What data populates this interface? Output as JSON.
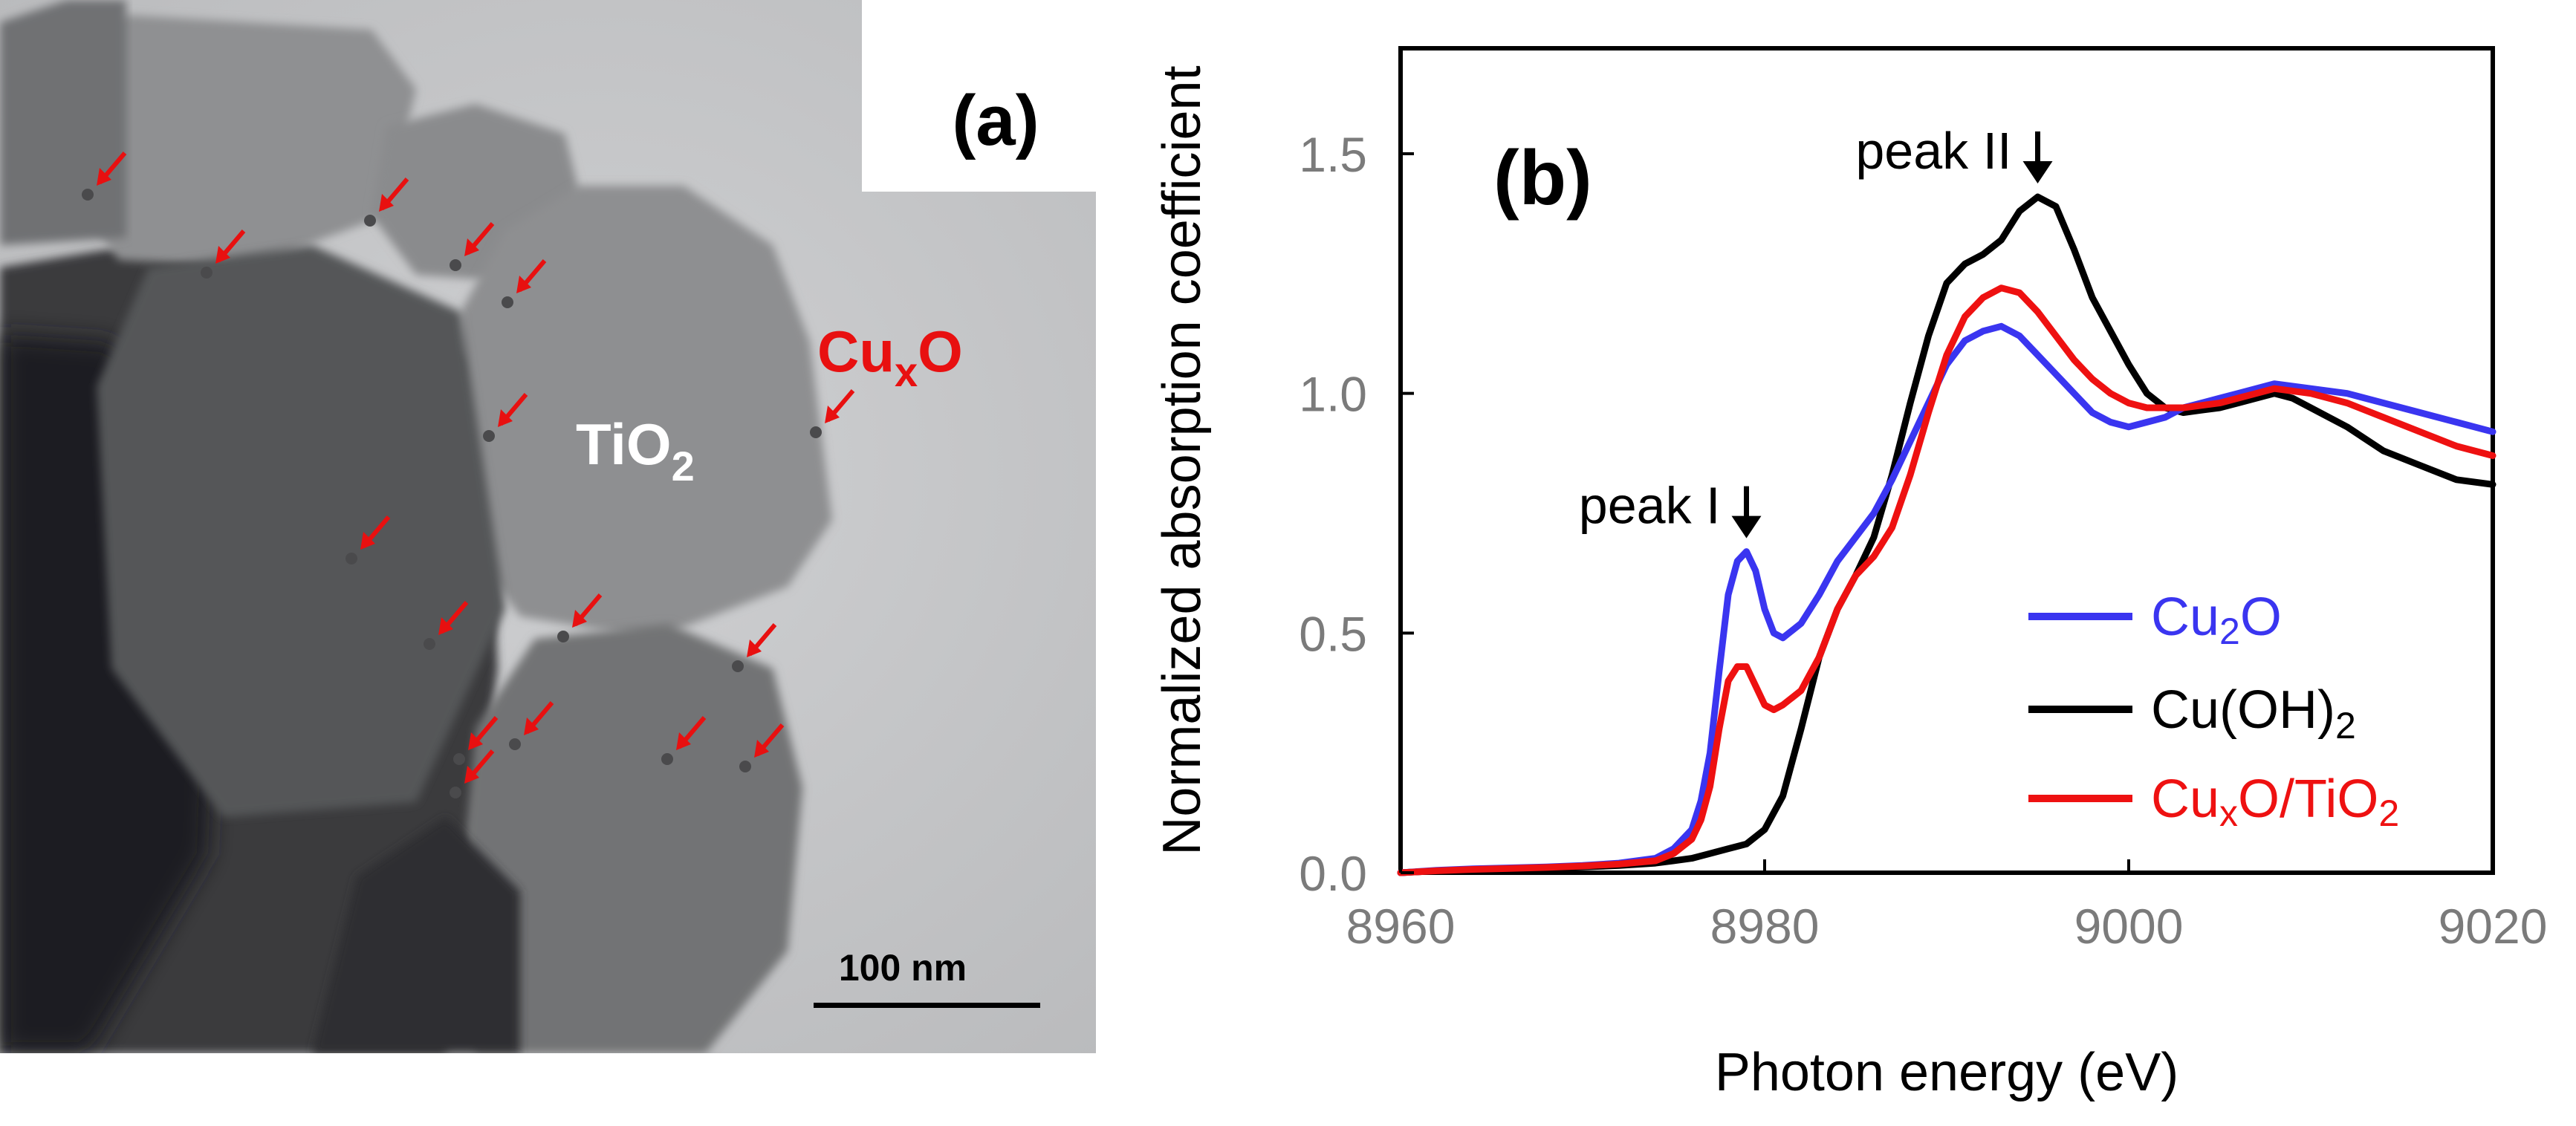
{
  "panel_a": {
    "label": "(a)",
    "tio2_label": {
      "base": "TiO",
      "sub": "2"
    },
    "cuxo_label": {
      "base": "Cu",
      "sub": "x",
      "tail": "O"
    },
    "scale_bar": "100 nm",
    "colors": {
      "marker": "#e81010",
      "label_red": "#e81010",
      "label_white": "#ffffff"
    }
  },
  "chart_data": {
    "type": "line",
    "panel_label": "(b)",
    "xlabel": "Photon energy (eV)",
    "ylabel": "Normalized absorption coefficient",
    "xlim": [
      8960,
      9020
    ],
    "ylim": [
      0,
      1.72
    ],
    "xticks": [
      8960,
      8980,
      9000,
      9020
    ],
    "xtick_labels": [
      "8960",
      "8980",
      "9000",
      "9020"
    ],
    "yticks": [
      0,
      0.5,
      1.0,
      1.5
    ],
    "ytick_labels": [
      "0.0",
      "0.5",
      "1.0",
      "1.5"
    ],
    "grid": false,
    "legend_position": "bottom-right",
    "annotations": [
      {
        "text": "peak I",
        "x": 8979,
        "y": 0.67
      },
      {
        "text": "peak II",
        "x": 8995,
        "y": 1.41
      }
    ],
    "series": [
      {
        "name": "Cu2O",
        "legend": {
          "base": "Cu",
          "sub": "2",
          "tail": "O"
        },
        "color": "#3a35f0",
        "x": [
          8960,
          8962,
          8964,
          8966,
          8968,
          8970,
          8972,
          8974,
          8975,
          8976,
          8976.5,
          8977,
          8977.5,
          8978,
          8978.5,
          8979,
          8979.5,
          8980,
          8980.5,
          8981,
          8982,
          8983,
          8984,
          8985,
          8986,
          8987,
          8988,
          8989,
          8990,
          8991,
          8992,
          8993,
          8994,
          8995,
          8996,
          8997,
          8998,
          8999,
          9000,
          9001,
          9002,
          9003,
          9004,
          9005,
          9006,
          9007,
          9008,
          9010,
          9012,
          9014,
          9016,
          9018,
          9020
        ],
        "y": [
          0.0,
          0.005,
          0.008,
          0.01,
          0.012,
          0.015,
          0.02,
          0.03,
          0.05,
          0.09,
          0.15,
          0.25,
          0.42,
          0.58,
          0.65,
          0.67,
          0.63,
          0.55,
          0.5,
          0.49,
          0.52,
          0.58,
          0.65,
          0.7,
          0.75,
          0.82,
          0.9,
          0.98,
          1.06,
          1.11,
          1.13,
          1.14,
          1.12,
          1.08,
          1.04,
          1.0,
          0.96,
          0.94,
          0.93,
          0.94,
          0.95,
          0.97,
          0.98,
          0.99,
          1.0,
          1.01,
          1.02,
          1.01,
          1.0,
          0.98,
          0.96,
          0.94,
          0.92
        ]
      },
      {
        "name": "Cu(OH)2",
        "legend": {
          "base": "Cu(OH)",
          "sub": "2",
          "tail": ""
        },
        "color": "#000000",
        "x": [
          8960,
          8962,
          8964,
          8966,
          8968,
          8970,
          8972,
          8974,
          8975,
          8976,
          8977,
          8978,
          8979,
          8980,
          8981,
          8982,
          8983,
          8984,
          8985,
          8986,
          8987,
          8988,
          8989,
          8990,
          8991,
          8992,
          8993,
          8994,
          8995,
          8996,
          8997,
          8998,
          8999,
          9000,
          9001,
          9002,
          9003,
          9004,
          9005,
          9006,
          9007,
          9008,
          9009,
          9010,
          9012,
          9014,
          9016,
          9018,
          9020
        ],
        "y": [
          0.0,
          0.004,
          0.006,
          0.008,
          0.01,
          0.012,
          0.015,
          0.02,
          0.025,
          0.03,
          0.04,
          0.05,
          0.06,
          0.09,
          0.16,
          0.3,
          0.45,
          0.55,
          0.62,
          0.7,
          0.83,
          0.98,
          1.12,
          1.23,
          1.27,
          1.29,
          1.32,
          1.38,
          1.41,
          1.39,
          1.3,
          1.2,
          1.13,
          1.06,
          1.0,
          0.97,
          0.96,
          0.965,
          0.97,
          0.98,
          0.99,
          1.0,
          0.99,
          0.97,
          0.93,
          0.88,
          0.85,
          0.82,
          0.81
        ]
      },
      {
        "name": "CuxO/TiO2",
        "legend": {
          "base": "Cu",
          "sub": "x",
          "tail": "O/TiO",
          "sub2": "2"
        },
        "color": "#ee1111",
        "x": [
          8960,
          8962,
          8964,
          8966,
          8968,
          8970,
          8972,
          8974,
          8975,
          8976,
          8976.5,
          8977,
          8977.5,
          8978,
          8978.5,
          8979,
          8979.5,
          8980,
          8980.5,
          8981,
          8982,
          8983,
          8984,
          8985,
          8986,
          8987,
          8988,
          8989,
          8990,
          8991,
          8992,
          8993,
          8994,
          8995,
          8996,
          8997,
          8998,
          8999,
          9000,
          9001,
          9002,
          9003,
          9004,
          9005,
          9006,
          9007,
          9008,
          9010,
          9012,
          9014,
          9016,
          9018,
          9020
        ],
        "y": [
          0.0,
          0.004,
          0.007,
          0.009,
          0.011,
          0.014,
          0.018,
          0.025,
          0.04,
          0.07,
          0.11,
          0.18,
          0.3,
          0.4,
          0.43,
          0.43,
          0.39,
          0.35,
          0.34,
          0.35,
          0.38,
          0.45,
          0.55,
          0.62,
          0.66,
          0.72,
          0.83,
          0.96,
          1.08,
          1.16,
          1.2,
          1.22,
          1.21,
          1.17,
          1.12,
          1.07,
          1.03,
          1.0,
          0.98,
          0.97,
          0.97,
          0.97,
          0.975,
          0.98,
          0.99,
          1.0,
          1.01,
          1.0,
          0.98,
          0.95,
          0.92,
          0.89,
          0.87
        ]
      }
    ]
  }
}
